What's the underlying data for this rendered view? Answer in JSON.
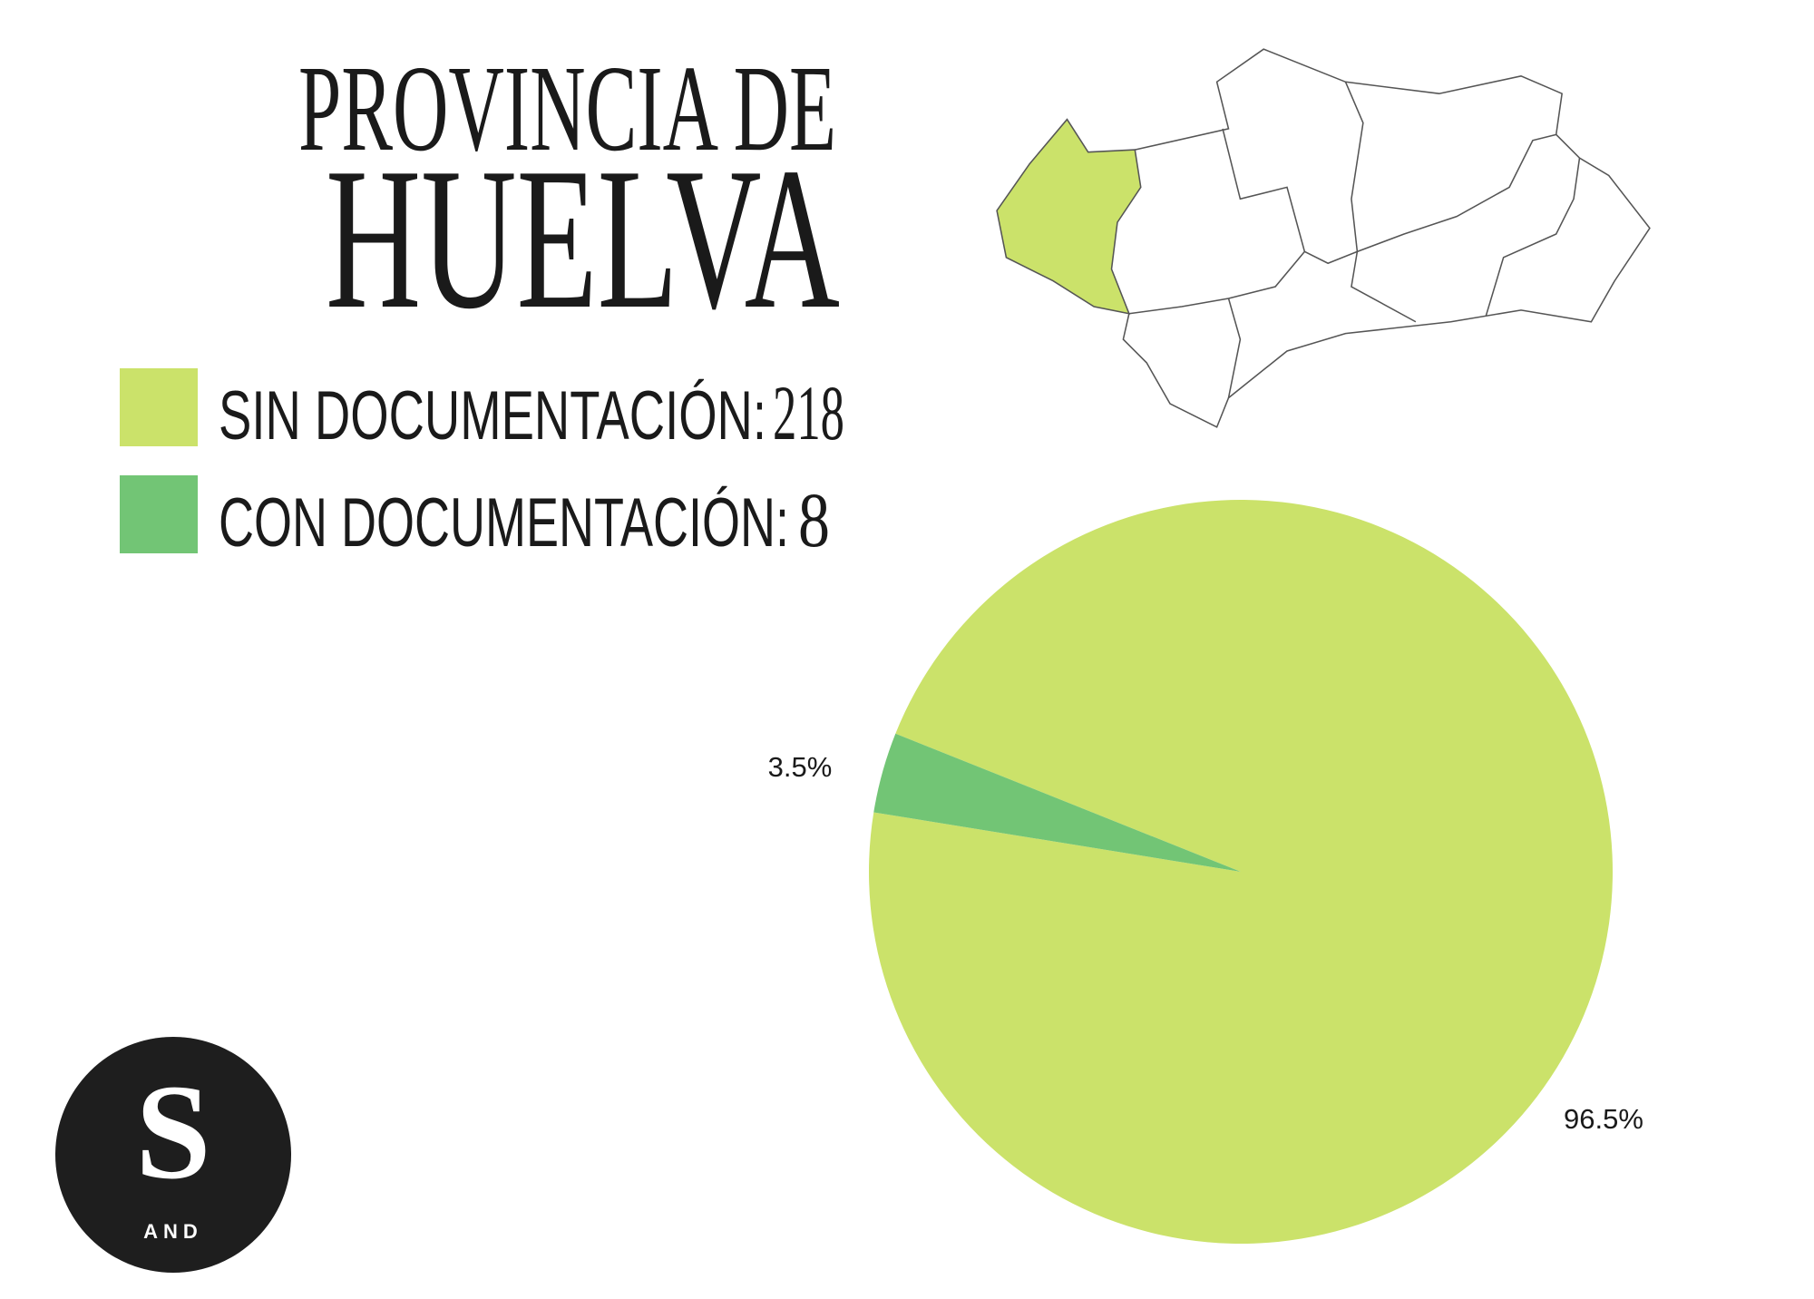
{
  "chart_data": {
    "type": "pie",
    "title": "PROVINCIA DE",
    "subtitle": "HUELVA",
    "categories": [
      "SIN DOCUMENTACIÓN:",
      "CON DOCUMENTACIÓN:"
    ],
    "counts": [
      218,
      8
    ],
    "values": [
      96.5,
      3.5
    ],
    "value_labels": [
      "96.5%",
      "3.5%"
    ],
    "colors": [
      "#cbe26a",
      "#72c575"
    ]
  },
  "logo": {
    "letter": "S",
    "text": "AND"
  }
}
